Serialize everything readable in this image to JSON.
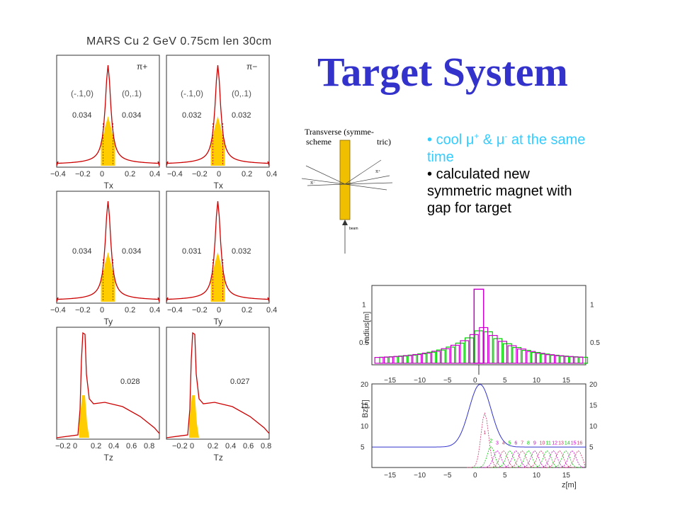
{
  "slide": {
    "title": "Target System",
    "bullets": [
      {
        "text": "cool μ+ & μ- at the same time",
        "color": "#33ccff",
        "parts": [
          "cool ",
          "μ",
          "+",
          " & ",
          "μ",
          "-",
          " at the same time"
        ]
      },
      {
        "text": "calculated new symmetric magnet with gap for target",
        "color": "#000000"
      }
    ]
  },
  "mars_plots": {
    "title": "MARS Cu 2 GeV 0.75cm len 30cm",
    "fill_color": "#ffcc00",
    "line_color": "#cc0000",
    "panels": [
      {
        "particle": "π+",
        "ranges": [
          "(-.1,0)",
          "(0,.1)"
        ],
        "values": [
          "0.034",
          "0.034"
        ],
        "axis_label": "Tx"
      },
      {
        "particle": "π−",
        "ranges": [
          "(-.1,0)",
          "(0,.1)"
        ],
        "values": [
          "0.032",
          "0.032"
        ],
        "axis_label": "Tx"
      },
      {
        "particle": "",
        "ranges": [],
        "values": [
          "0.034",
          "0.034"
        ],
        "axis_label": "Ty"
      },
      {
        "particle": "",
        "ranges": [],
        "values": [
          "0.031",
          "0.032"
        ],
        "axis_label": "Ty"
      },
      {
        "particle": "",
        "ranges": [],
        "values": [
          "0.028"
        ],
        "axis_label": "Tz"
      },
      {
        "particle": "",
        "ranges": [],
        "values": [
          "0.027"
        ],
        "axis_label": "Tz"
      }
    ],
    "x_ticks_sym": [
      "−0.4",
      "−0.2",
      "0",
      "0.2",
      "0.4"
    ],
    "x_ticks_z_left": [
      "−0.2",
      "0",
      "0.2",
      "0.4",
      "0.6",
      "0.8"
    ],
    "x_ticks_z_right": [
      "−0.2",
      "0",
      "0.2",
      "0.4",
      "0.6",
      "0.8"
    ]
  },
  "scheme": {
    "title_lines": [
      "Transverse (symme-",
      "scheme",
      "tric)"
    ],
    "labels": {
      "pi_minus": "π⁻",
      "pi_plus": "π⁺",
      "beam": "beam"
    },
    "target_color": "#f0c000"
  },
  "chart_data": [
    {
      "type": "line",
      "title": "",
      "ylabel": "radius[m]",
      "xlabel": "",
      "xlim": [
        -18,
        18
      ],
      "ylim": [
        0.2,
        1.25
      ],
      "x_ticks": [
        "−15",
        "−10",
        "−5",
        "0",
        "5",
        "10",
        "15"
      ],
      "y_ticks_left": [
        "1",
        "0.5"
      ],
      "y_ticks_right": [
        "1",
        "0.5"
      ],
      "series": [
        {
          "color": "#00cc00"
        },
        {
          "color": "#cc00cc"
        }
      ]
    },
    {
      "type": "line",
      "title": "",
      "ylabel": "Bz[T]",
      "xlabel": "z[m]",
      "xlim": [
        -18,
        18
      ],
      "ylim": [
        0,
        20
      ],
      "x_ticks": [
        "−15",
        "−10",
        "−5",
        "0",
        "5",
        "10",
        "15"
      ],
      "y_ticks_left": [
        "20",
        "15",
        "10",
        "5"
      ],
      "y_ticks_right": [
        "20",
        "15",
        "10",
        "5"
      ],
      "coil_labels": [
        "1",
        "2",
        "3",
        "4",
        "5",
        "6",
        "7",
        "8",
        "9",
        "10",
        "11",
        "12",
        "13",
        "14",
        "15",
        "16"
      ],
      "series": [
        {
          "color": "#3333cc"
        },
        {
          "color": "#cc3366"
        },
        {
          "color": "#00cc00"
        },
        {
          "color": "#cc00cc"
        }
      ]
    }
  ]
}
